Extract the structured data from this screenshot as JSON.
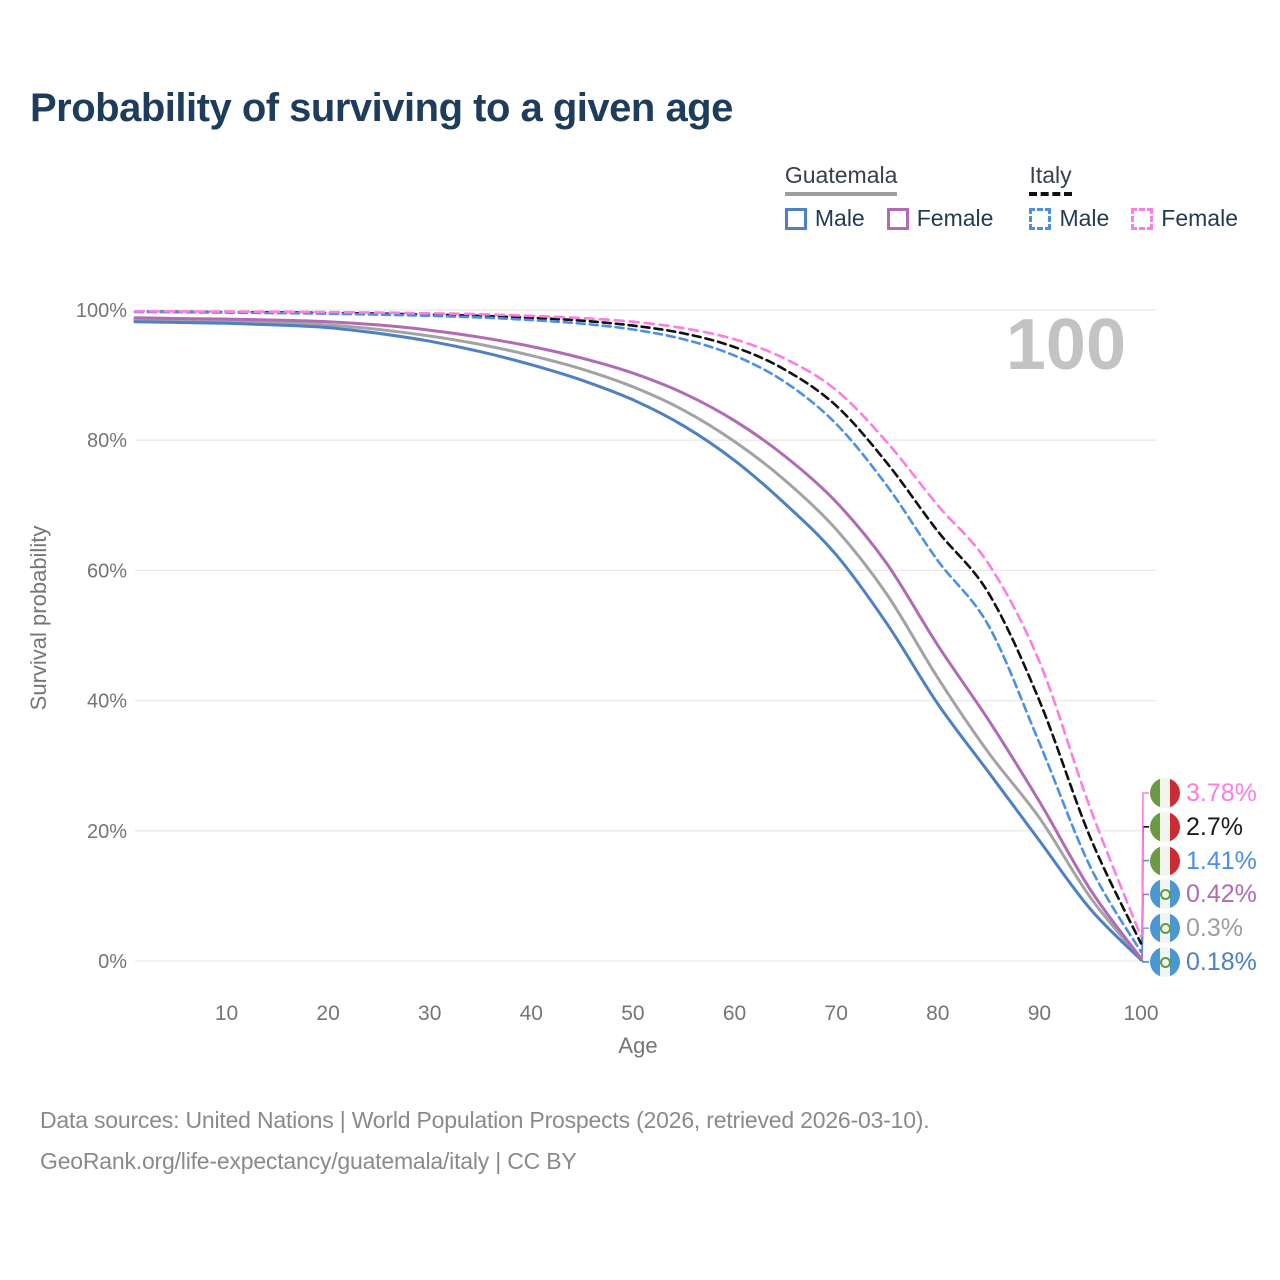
{
  "title": "Probability of surviving to a given age",
  "legend": {
    "groups": [
      {
        "name": "Guatemala",
        "line_style": "solid",
        "rule_color": "#9e9e9e",
        "items": [
          {
            "label": "Male",
            "color": "#4e80c4"
          },
          {
            "label": "Female",
            "color": "#b16bb4"
          }
        ]
      },
      {
        "name": "Italy",
        "line_style": "dashed",
        "rule_color": "#111111",
        "items": [
          {
            "label": "Male",
            "color": "#4a90e9"
          },
          {
            "label": "Female",
            "color": "#ff7ce1"
          }
        ]
      }
    ]
  },
  "chart_data": {
    "type": "line",
    "title": "Probability of surviving to a given age",
    "xlabel": "Age",
    "ylabel": "Survival probability",
    "age_counter": "100",
    "xlim": [
      1,
      100
    ],
    "ylim": [
      0,
      100
    ],
    "x_ticks": [
      10,
      20,
      30,
      40,
      50,
      60,
      70,
      80,
      90,
      100
    ],
    "y_tick_values": [
      0,
      20,
      40,
      60,
      80,
      100
    ],
    "y_tick_labels": [
      "0%",
      "20%",
      "40%",
      "60%",
      "80%",
      "100%"
    ],
    "grid": "horizontal",
    "gridline_color": "#e9e9e9",
    "ages": [
      1,
      5,
      10,
      15,
      20,
      25,
      30,
      35,
      40,
      45,
      50,
      55,
      60,
      65,
      70,
      75,
      80,
      85,
      90,
      95,
      100
    ],
    "series": [
      {
        "name": "Guatemala average",
        "country": "guatemala",
        "sex": "both",
        "line_style": "solid",
        "color": "#a3a3a3",
        "label_index": 4,
        "values": [
          98.5,
          98.4,
          98.25,
          98.05,
          97.7,
          97.0,
          96.0,
          94.7,
          93.0,
          90.9,
          88.2,
          84.6,
          79.8,
          73.8,
          66.3,
          56.3,
          43.5,
          32.0,
          22.0,
          9.8,
          0.3
        ]
      },
      {
        "name": "Guatemala Male",
        "country": "guatemala",
        "sex": "male",
        "line_style": "solid",
        "color": "#4e80c4",
        "label_index": 5,
        "values": [
          98.2,
          98.1,
          97.95,
          97.7,
          97.3,
          96.4,
          95.2,
          93.6,
          91.6,
          89.2,
          86.2,
          82.2,
          76.9,
          70.2,
          62.4,
          51.8,
          39.5,
          29.0,
          18.5,
          8.0,
          0.18
        ]
      },
      {
        "name": "Guatemala Female",
        "country": "guatemala",
        "sex": "female",
        "line_style": "solid",
        "color": "#b16bb4",
        "label_index": 3,
        "values": [
          98.8,
          98.7,
          98.6,
          98.45,
          98.2,
          97.7,
          96.9,
          95.8,
          94.4,
          92.6,
          90.3,
          87.2,
          83.0,
          77.5,
          70.5,
          61.0,
          48.5,
          37.0,
          24.5,
          11.0,
          0.42
        ]
      },
      {
        "name": "Italy average",
        "country": "italy",
        "sex": "both",
        "line_style": "dashed",
        "color": "#111111",
        "label_index": 1,
        "values": [
          99.75,
          99.72,
          99.68,
          99.63,
          99.55,
          99.45,
          99.3,
          99.1,
          98.8,
          98.35,
          97.6,
          96.4,
          94.3,
          90.8,
          85.3,
          76.5,
          66.0,
          56.5,
          40.0,
          19.0,
          2.7
        ]
      },
      {
        "name": "Italy Male",
        "country": "italy",
        "sex": "male",
        "line_style": "dashed",
        "color": "#4a90e9",
        "label_index": 2,
        "values": [
          99.7,
          99.66,
          99.6,
          99.53,
          99.43,
          99.3,
          99.1,
          98.85,
          98.45,
          97.9,
          97.0,
          95.5,
          93.0,
          88.9,
          82.5,
          73.0,
          61.5,
          51.5,
          33.5,
          14.5,
          1.41
        ]
      },
      {
        "name": "Italy Female",
        "country": "italy",
        "sex": "female",
        "line_style": "dashed",
        "color": "#ff7ce1",
        "label_index": 0,
        "values": [
          99.8,
          99.78,
          99.75,
          99.72,
          99.67,
          99.6,
          99.5,
          99.35,
          99.1,
          98.75,
          98.2,
          97.2,
          95.5,
          92.5,
          87.7,
          79.7,
          70.0,
          61.0,
          46.0,
          23.5,
          3.78
        ]
      }
    ],
    "legend_position": "top-right"
  },
  "end_labels": [
    {
      "flag": "italy",
      "value": "3.78%",
      "color": "#ff7ce1"
    },
    {
      "flag": "italy",
      "value": "2.7%",
      "color": "#1a1a1a"
    },
    {
      "flag": "italy",
      "value": "1.41%",
      "color": "#4a90e9"
    },
    {
      "flag": "guatemala",
      "value": "0.42%",
      "color": "#b16bb4"
    },
    {
      "flag": "guatemala",
      "value": "0.3%",
      "color": "#9e9e9e"
    },
    {
      "flag": "guatemala",
      "value": "0.18%",
      "color": "#4e80c4"
    }
  ],
  "flags": {
    "italy": [
      "#6a9a43",
      "#f4f4ef",
      "#cc2b33"
    ],
    "guatemala": [
      "#4a97d3",
      "#f2f5f2",
      "#4a97d3"
    ]
  },
  "footer": {
    "line1": "Data sources: United Nations | World Population Prospects (2026, retrieved 2026-03-10).",
    "line2": "GeoRank.org/life-expectancy/guatemala/italy | CC BY"
  }
}
